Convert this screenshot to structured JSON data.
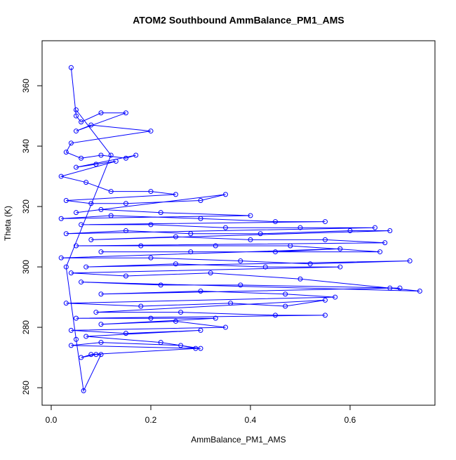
{
  "chart_data": {
    "type": "line",
    "markers": true,
    "title": "ATOM2 Southbound AmmBalance_PM1_AMS",
    "x_label": "AmmBalance_PM1_AMS",
    "y_label": "Theta (K)",
    "xlim": [
      -0.0183,
      0.7704
    ],
    "ylim": [
      254.2,
      374.9
    ],
    "xticks": [
      {
        "value": 0,
        "label": "0.0"
      },
      0.2,
      0.4,
      0.6
    ],
    "yticks": [
      260,
      280,
      300,
      320,
      340,
      360
    ],
    "grid": false,
    "x": [
      0.04,
      0.05,
      0.06,
      0.1,
      0.15,
      0.05,
      0.08,
      0.2,
      0.04,
      0.03,
      0.06,
      0.1,
      0.15,
      0.17,
      0.05,
      0.09,
      0.13,
      0.02,
      0.07,
      0.12,
      0.2,
      0.25,
      0.03,
      0.08,
      0.15,
      0.3,
      0.35,
      0.05,
      0.1,
      0.22,
      0.4,
      0.02,
      0.12,
      0.3,
      0.45,
      0.55,
      0.06,
      0.2,
      0.35,
      0.5,
      0.65,
      0.03,
      0.15,
      0.28,
      0.42,
      0.6,
      0.68,
      0.08,
      0.25,
      0.4,
      0.55,
      0.67,
      0.05,
      0.18,
      0.33,
      0.48,
      0.66,
      0.1,
      0.28,
      0.45,
      0.58,
      0.02,
      0.2,
      0.38,
      0.52,
      0.72,
      0.07,
      0.25,
      0.43,
      0.58,
      0.04,
      0.15,
      0.32,
      0.5,
      0.74,
      0.06,
      0.22,
      0.38,
      0.7,
      0.68,
      0.1,
      0.3,
      0.47,
      0.57,
      0.03,
      0.18,
      0.36,
      0.47,
      0.55,
      0.09,
      0.26,
      0.45,
      0.55,
      0.05,
      0.2,
      0.33,
      0.1,
      0.25,
      0.35,
      0.04,
      0.15,
      0.3,
      0.07,
      0.22,
      0.3,
      0.04,
      0.1,
      0.26,
      0.29,
      0.08,
      0.06,
      0.09,
      0.1,
      0.065,
      0.05,
      0.03,
      0.12,
      0.05
    ],
    "series": [
      {
        "color": "#0000ff",
        "values": [
          366,
          350,
          348,
          351,
          351,
          345,
          347,
          345,
          341,
          338,
          336,
          337,
          336,
          337,
          333,
          334,
          335,
          330,
          328,
          325,
          325,
          324,
          322,
          321,
          321,
          322,
          324,
          318,
          319,
          318,
          317,
          316,
          317,
          316,
          315,
          315,
          314,
          314,
          313,
          313,
          313,
          311,
          312,
          311,
          311,
          312,
          312,
          309,
          310,
          309,
          309,
          308,
          307,
          307,
          307,
          307,
          305,
          305,
          305,
          305,
          306,
          303,
          303,
          302,
          301,
          302,
          300,
          301,
          300,
          300,
          298,
          297,
          298,
          296,
          292,
          295,
          294,
          294,
          293,
          293,
          291,
          292,
          291,
          290,
          288,
          287,
          288,
          287,
          289,
          285,
          285,
          284,
          284,
          283,
          283,
          283,
          281,
          282,
          280,
          279,
          278,
          279,
          277,
          275,
          273,
          274,
          275,
          274,
          273,
          271,
          270,
          271,
          271,
          259,
          276,
          300,
          337,
          352
        ]
      }
    ]
  }
}
